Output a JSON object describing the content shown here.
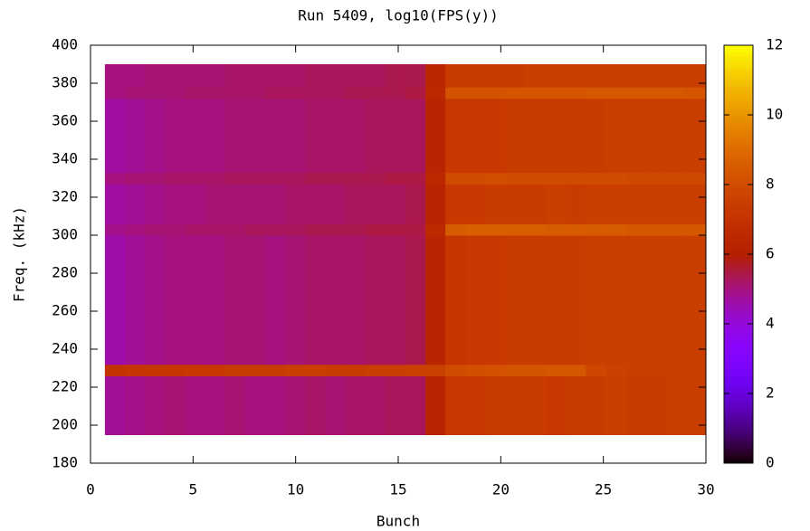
{
  "chart_data": {
    "type": "heatmap",
    "title": "Run 5409, log10(FPS(y))",
    "x_label": "Bunch",
    "y_label": "Freq. (kHz)",
    "xlim": [
      0,
      30
    ],
    "xticks": [
      0,
      5,
      10,
      15,
      20,
      25,
      30
    ],
    "ylim": [
      180,
      400
    ],
    "yticks": [
      180,
      200,
      220,
      240,
      260,
      280,
      300,
      320,
      340,
      360,
      380,
      400
    ],
    "zlim": [
      0,
      12
    ],
    "zticks": [
      0,
      2,
      4,
      6,
      8,
      10,
      12
    ],
    "xbins": [
      0.7,
      1.68,
      2.65,
      3.63,
      4.61,
      5.58,
      6.56,
      7.54,
      8.51,
      9.49,
      10.47,
      11.44,
      12.42,
      13.4,
      14.37,
      15.35,
      16.33,
      17.3,
      18.28,
      19.26,
      20.23,
      21.21,
      22.19,
      23.16,
      24.14,
      25.12,
      26.09,
      27.07,
      28.05,
      29.02,
      30
    ],
    "ybins": [
      195,
      226,
      232,
      300,
      306,
      327,
      333,
      372,
      378,
      390
    ],
    "z": [
      [
        4.8,
        4.9,
        5.0,
        5.1,
        5.0,
        5.0,
        5.1,
        5.0,
        5.0,
        5.1,
        5.2,
        5.1,
        5.2,
        5.2,
        5.3,
        5.3,
        6.3,
        7.3,
        7.3,
        7.4,
        7.4,
        7.4,
        7.3,
        7.4,
        7.4,
        7.5,
        7.4,
        7.4,
        7.5,
        7.5
      ],
      [
        7.0,
        7.1,
        7.2,
        7.2,
        7.3,
        7.3,
        7.4,
        7.4,
        7.4,
        7.5,
        7.5,
        7.4,
        7.4,
        7.5,
        7.5,
        7.6,
        7.6,
        8.0,
        8.1,
        8.2,
        8.3,
        8.3,
        8.4,
        8.4,
        7.8,
        7.6,
        7.5,
        7.5,
        7.5,
        7.5
      ],
      [
        4.6,
        4.8,
        4.9,
        5.0,
        5.0,
        5.0,
        5.1,
        5.1,
        5.0,
        5.1,
        5.2,
        5.2,
        5.2,
        5.3,
        5.3,
        5.4,
        6.3,
        7.2,
        7.3,
        7.3,
        7.4,
        7.4,
        7.4,
        7.4,
        7.5,
        7.5,
        7.5,
        7.5,
        7.5,
        7.5
      ],
      [
        4.9,
        5.0,
        5.1,
        5.1,
        5.2,
        5.2,
        5.2,
        5.3,
        5.3,
        5.3,
        5.4,
        5.4,
        5.4,
        5.5,
        5.5,
        5.5,
        6.6,
        8.5,
        8.6,
        8.6,
        8.6,
        8.6,
        8.5,
        8.5,
        8.5,
        8.5,
        8.4,
        8.4,
        8.4,
        8.4
      ],
      [
        4.7,
        4.8,
        4.9,
        5.0,
        5.0,
        5.1,
        5.1,
        5.1,
        5.1,
        5.2,
        5.2,
        5.2,
        5.3,
        5.3,
        5.3,
        5.4,
        6.3,
        7.3,
        7.3,
        7.4,
        7.4,
        7.4,
        7.5,
        7.4,
        7.5,
        7.5,
        7.5,
        7.5,
        7.5,
        7.5
      ],
      [
        5.0,
        5.1,
        5.1,
        5.2,
        5.2,
        5.2,
        5.3,
        5.3,
        5.3,
        5.3,
        5.4,
        5.4,
        5.4,
        5.4,
        5.5,
        5.5,
        6.5,
        8.0,
        8.0,
        8.1,
        8.0,
        8.0,
        8.0,
        8.0,
        8.0,
        8.0,
        7.9,
        7.9,
        7.9,
        7.9
      ],
      [
        4.7,
        4.8,
        4.9,
        5.0,
        5.0,
        5.0,
        5.1,
        5.1,
        5.1,
        5.1,
        5.2,
        5.2,
        5.2,
        5.3,
        5.3,
        5.3,
        6.3,
        7.3,
        7.3,
        7.3,
        7.4,
        7.4,
        7.4,
        7.4,
        7.4,
        7.5,
        7.5,
        7.5,
        7.5,
        7.5
      ],
      [
        5.0,
        5.1,
        5.1,
        5.1,
        5.2,
        5.2,
        5.2,
        5.2,
        5.3,
        5.3,
        5.3,
        5.3,
        5.4,
        5.4,
        5.4,
        5.5,
        6.5,
        8.2,
        8.2,
        8.2,
        8.3,
        8.3,
        8.3,
        8.3,
        8.4,
        8.4,
        8.4,
        8.4,
        8.4,
        8.3
      ],
      [
        5.0,
        5.0,
        5.1,
        5.1,
        5.1,
        5.1,
        5.2,
        5.2,
        5.2,
        5.2,
        5.3,
        5.3,
        5.3,
        5.3,
        5.4,
        5.4,
        6.4,
        7.4,
        7.4,
        7.4,
        7.4,
        7.5,
        7.5,
        7.5,
        7.5,
        7.5,
        7.5,
        7.5,
        7.5,
        7.5
      ]
    ]
  }
}
